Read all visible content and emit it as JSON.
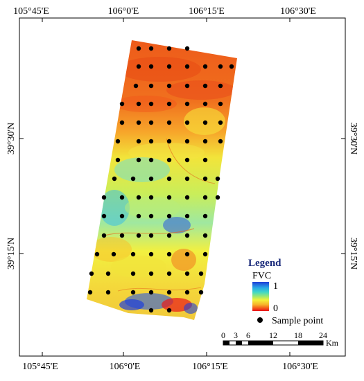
{
  "map": {
    "top_lon_labels": [
      "105°45'E",
      "106°0'E",
      "106°15'E",
      "106°30'E"
    ],
    "bottom_lon_labels": [
      "105°45'E",
      "106°0'E",
      "106°15'E",
      "106°30'E"
    ],
    "left_lat_labels": [
      "39°30'N",
      "39°15'N"
    ],
    "right_lat_labels": [
      "39°30'N",
      "39°15'N"
    ]
  },
  "legend": {
    "title": "Legend",
    "layer_name": "FVC",
    "ramp_max": "1",
    "ramp_min": "0",
    "sample_point_label": "Sample point",
    "ramp_colors": [
      "#1f3fd8",
      "#2aa8e6",
      "#3fd8c8",
      "#9fe870",
      "#f2f23a",
      "#f7b32a",
      "#f45a1a",
      "#e8101a"
    ]
  },
  "scalebar": {
    "ticks": [
      "0",
      "3",
      "6",
      "12",
      "18",
      "24"
    ],
    "unit": "Km"
  },
  "colors": {
    "high_fvc": "#1f3fd8",
    "mid_fvc": "#f2f23a",
    "low_fvc": "#e8401a",
    "sample_point": "#000000"
  }
}
